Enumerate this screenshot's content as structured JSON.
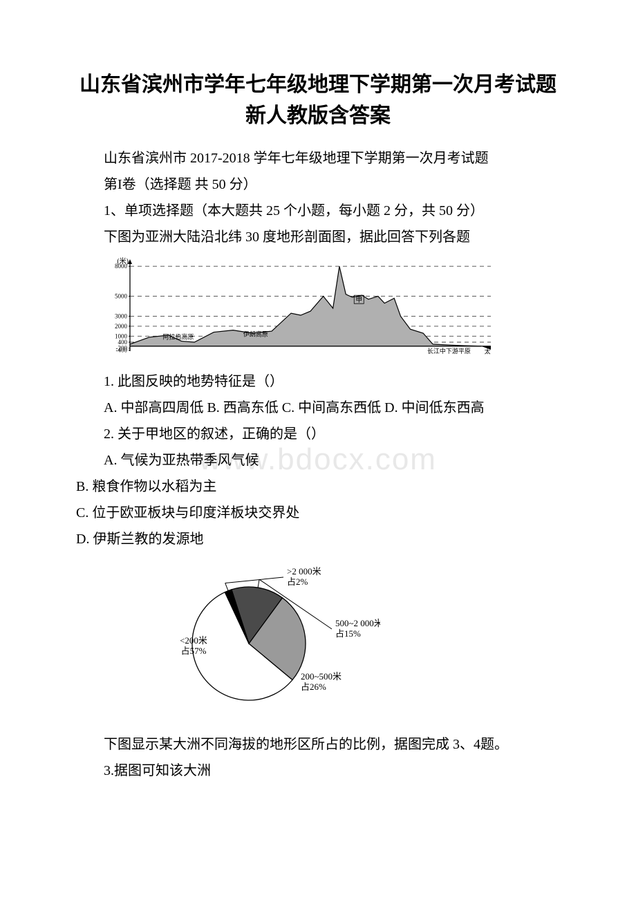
{
  "title": "山东省滨州市学年七年级地理下学期第一次月考试题新人教版含答案",
  "intro1": "山东省滨州市 2017-2018 学年七年级地理下学期第一次月考试题",
  "intro2": "第I卷（选择题 共 50 分）",
  "section_header": "1、单项选择题（本大题共 25 个小题，每小题 2 分，共 50 分）",
  "chart1_intro": "下图为亚洲大陆沿北纬 30 度地形剖面图，据此回答下列各题",
  "q1": "1. 此图反映的地势特征是（）",
  "q1_options": "A. 中部高四周低 B. 西高东低 C. 中间高东西低 D. 中间低东西高",
  "q2": "2. 关于甲地区的叙述，正确的是（）",
  "q2_a": "A. 气候为亚热带季风气候",
  "q2_b": "B. 粮食作物以水稻为主",
  "q2_c": "C. 位于欧亚板块与印度洋板块交界处",
  "q2_d": "D. 伊斯兰教的发源地",
  "chart2_intro": "下图显示某大洲不同海拔的地形区所占的比例，据图完成 3、4题。",
  "q3": "3.据图可知该大洲",
  "watermark": "www.bdocx.com",
  "profile_chart": {
    "type": "area-profile",
    "y_label": "(米)",
    "y_ticks": [
      -400,
      -200,
      400,
      1000,
      2000,
      3000,
      5000,
      8000
    ],
    "ylim": [
      -500,
      8500
    ],
    "labels": {
      "plateau1": "阿拉伯高原",
      "plateau2": "伊朗高原",
      "marker": "甲",
      "plain": "长江中下游平原",
      "ocean": "太平洋"
    },
    "colors": {
      "fill": "#b0b0b0",
      "ocean": "#000000",
      "grid": "#444444",
      "axis": "#000000",
      "text": "#000000",
      "background": "#ffffff"
    },
    "profile_points": [
      [
        0,
        200
      ],
      [
        30,
        900
      ],
      [
        60,
        1100
      ],
      [
        80,
        500
      ],
      [
        100,
        400
      ],
      [
        130,
        1400
      ],
      [
        160,
        1600
      ],
      [
        190,
        1300
      ],
      [
        220,
        1500
      ],
      [
        250,
        3300
      ],
      [
        265,
        3100
      ],
      [
        280,
        3500
      ],
      [
        300,
        5000
      ],
      [
        315,
        3800
      ],
      [
        325,
        8000
      ],
      [
        335,
        5200
      ],
      [
        345,
        4900
      ],
      [
        360,
        5100
      ],
      [
        370,
        4700
      ],
      [
        385,
        5000
      ],
      [
        395,
        4300
      ],
      [
        410,
        4800
      ],
      [
        420,
        3000
      ],
      [
        435,
        1700
      ],
      [
        455,
        1300
      ],
      [
        470,
        200
      ],
      [
        500,
        100
      ],
      [
        520,
        50
      ],
      [
        545,
        0
      ]
    ],
    "ocean_points": [
      [
        545,
        0
      ],
      [
        560,
        -350
      ]
    ],
    "line_width": 1.2
  },
  "pie_chart": {
    "type": "pie",
    "slices": [
      {
        "label": "<200米",
        "sublabel": "占57%",
        "value": 57,
        "color": "#ffffff"
      },
      {
        "label": "200~500米",
        "sublabel": "占26%",
        "value": 26,
        "color": "#9a9a9a"
      },
      {
        "label": "500~2 000米",
        "sublabel": "占15%",
        "value": 15,
        "color": "#4a4a4a"
      },
      {
        "label": ">2 000米",
        "sublabel": "占2%",
        "value": 2,
        "color": "#000000"
      }
    ],
    "start_angle": 115,
    "stroke": "#000000",
    "stroke_width": 1.3,
    "label_fontsize": 13,
    "background": "#ffffff"
  }
}
